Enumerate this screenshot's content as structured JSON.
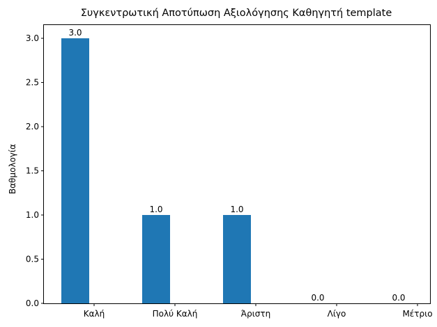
{
  "chart_data": {
    "type": "bar",
    "title": "Συγκεντρωτική Αποτύπωση Αξιολόγησης Καθηγητή template",
    "xlabel": "",
    "ylabel": "Βαθμολογία",
    "categories": [
      "Καλή",
      "Πολύ Καλή",
      "Άριστη",
      "Λίγο",
      "Μέτριο"
    ],
    "values": [
      3.0,
      1.0,
      1.0,
      0.0,
      0.0
    ],
    "data_labels": [
      "3.0",
      "1.0",
      "1.0",
      "0.0",
      "0.0"
    ],
    "ylim": [
      0,
      3.15
    ],
    "yticks": [
      "0.0",
      "0.5",
      "1.0",
      "1.5",
      "2.0",
      "2.5",
      "3.0"
    ],
    "ytick_values": [
      0,
      0.5,
      1.0,
      1.5,
      2.0,
      2.5,
      3.0
    ],
    "bar_color": "#1f77b4",
    "grid": false
  }
}
